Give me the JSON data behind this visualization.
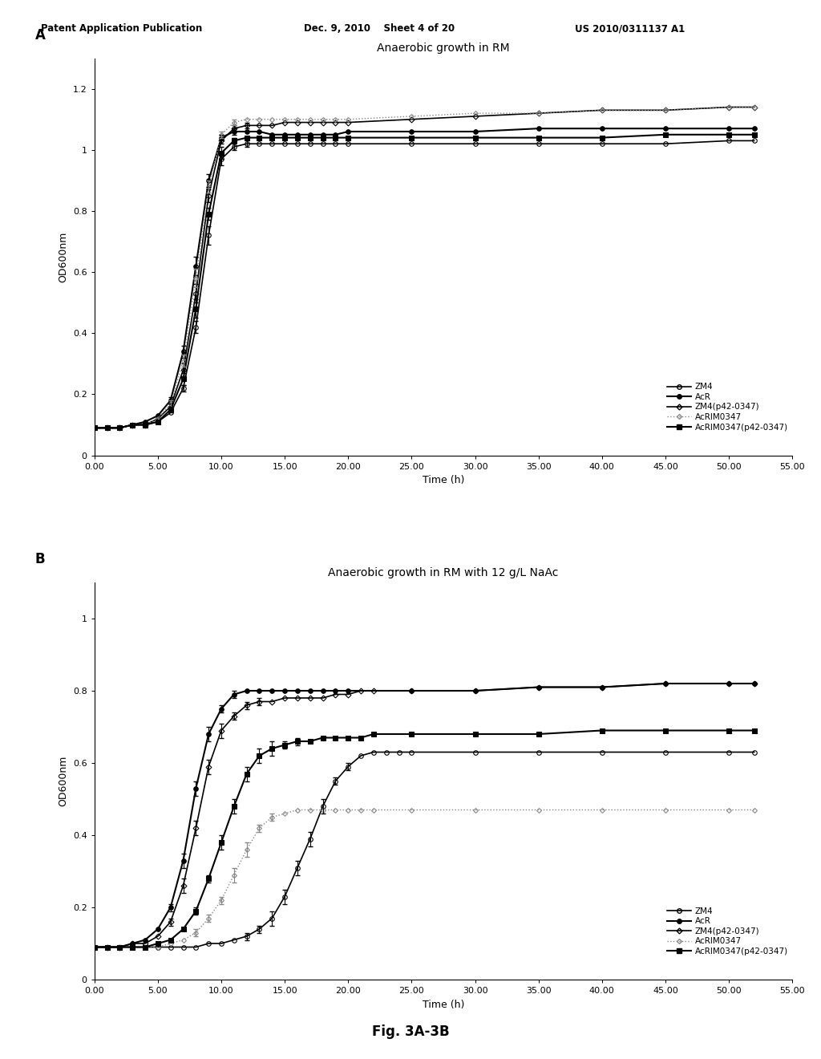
{
  "header_left": "Patent Application Publication",
  "header_center": "Dec. 9, 2010    Sheet 4 of 20",
  "header_right": "US 2010/0311137 A1",
  "fig_label": "Fig. 3A-3B",
  "panel_A": {
    "title": "Anaerobic growth in RM",
    "xlabel": "Time (h)",
    "ylabel": "OD600nm",
    "xlim": [
      0,
      55
    ],
    "ylim": [
      0,
      1.3
    ],
    "yticks": [
      0,
      0.2,
      0.4,
      0.6,
      0.8,
      1.0,
      1.2
    ],
    "xticks": [
      0.0,
      5.0,
      10.0,
      15.0,
      20.0,
      25.0,
      30.0,
      35.0,
      40.0,
      45.0,
      50.0,
      55.0
    ],
    "panel_letter": "A",
    "ZM4": {
      "x": [
        0.0,
        1.0,
        2.0,
        3.0,
        4.0,
        5.0,
        6.0,
        7.0,
        8.0,
        9.0,
        10.0,
        11.0,
        12.0,
        13.0,
        14.0,
        15.0,
        16.0,
        17.0,
        18.0,
        19.0,
        20.0,
        25.0,
        30.0,
        35.0,
        40.0,
        45.0,
        50.0,
        52.0
      ],
      "y": [
        0.09,
        0.09,
        0.09,
        0.1,
        0.1,
        0.11,
        0.14,
        0.22,
        0.42,
        0.72,
        0.97,
        1.01,
        1.02,
        1.02,
        1.02,
        1.02,
        1.02,
        1.02,
        1.02,
        1.02,
        1.02,
        1.02,
        1.02,
        1.02,
        1.02,
        1.02,
        1.03,
        1.03
      ],
      "yerr": [
        0.0,
        0.0,
        0.0,
        0.0,
        0.0,
        0.0,
        0.0,
        0.01,
        0.02,
        0.03,
        0.02,
        0.01,
        0.01,
        0.0,
        0.0,
        0.0,
        0.0,
        0.0,
        0.0,
        0.0,
        0.0,
        0.0,
        0.0,
        0.0,
        0.0,
        0.0,
        0.0,
        0.0
      ],
      "marker": "o",
      "fillstyle": "none",
      "color": "#000000",
      "linestyle": "-",
      "linewidth": 1.2,
      "markersize": 4
    },
    "AcR": {
      "x": [
        0.0,
        1.0,
        2.0,
        3.0,
        4.0,
        5.0,
        6.0,
        7.0,
        8.0,
        9.0,
        10.0,
        11.0,
        12.0,
        13.0,
        14.0,
        15.0,
        16.0,
        17.0,
        18.0,
        19.0,
        20.0,
        25.0,
        30.0,
        35.0,
        40.0,
        45.0,
        50.0,
        52.0
      ],
      "y": [
        0.09,
        0.09,
        0.09,
        0.1,
        0.11,
        0.13,
        0.18,
        0.34,
        0.62,
        0.9,
        1.04,
        1.06,
        1.06,
        1.06,
        1.05,
        1.05,
        1.05,
        1.05,
        1.05,
        1.05,
        1.06,
        1.06,
        1.06,
        1.07,
        1.07,
        1.07,
        1.07,
        1.07
      ],
      "yerr": [
        0.0,
        0.0,
        0.0,
        0.0,
        0.0,
        0.0,
        0.01,
        0.02,
        0.03,
        0.02,
        0.01,
        0.01,
        0.0,
        0.0,
        0.0,
        0.0,
        0.0,
        0.0,
        0.0,
        0.0,
        0.0,
        0.0,
        0.0,
        0.0,
        0.0,
        0.0,
        0.0,
        0.0
      ],
      "marker": "o",
      "fillstyle": "full",
      "color": "#000000",
      "linestyle": "-",
      "linewidth": 1.5,
      "markersize": 4
    },
    "ZM4p42": {
      "x": [
        0.0,
        1.0,
        2.0,
        3.0,
        4.0,
        5.0,
        6.0,
        7.0,
        8.0,
        9.0,
        10.0,
        11.0,
        12.0,
        13.0,
        14.0,
        15.0,
        16.0,
        17.0,
        18.0,
        19.0,
        20.0,
        25.0,
        30.0,
        35.0,
        40.0,
        45.0,
        50.0,
        52.0
      ],
      "y": [
        0.09,
        0.09,
        0.09,
        0.1,
        0.1,
        0.12,
        0.16,
        0.28,
        0.53,
        0.85,
        1.03,
        1.07,
        1.08,
        1.08,
        1.08,
        1.09,
        1.09,
        1.09,
        1.09,
        1.09,
        1.09,
        1.1,
        1.11,
        1.12,
        1.13,
        1.13,
        1.14,
        1.14
      ],
      "yerr": [
        0.0,
        0.0,
        0.0,
        0.0,
        0.0,
        0.0,
        0.01,
        0.02,
        0.03,
        0.02,
        0.01,
        0.01,
        0.01,
        0.0,
        0.0,
        0.0,
        0.0,
        0.0,
        0.0,
        0.0,
        0.0,
        0.0,
        0.0,
        0.0,
        0.0,
        0.0,
        0.0,
        0.0
      ],
      "marker": "D",
      "fillstyle": "none",
      "color": "#000000",
      "linestyle": "-",
      "linewidth": 1.2,
      "markersize": 3.5
    },
    "AcRIM0347": {
      "x": [
        0.0,
        1.0,
        2.0,
        3.0,
        4.0,
        5.0,
        6.0,
        7.0,
        8.0,
        9.0,
        10.0,
        11.0,
        12.0,
        13.0,
        14.0,
        15.0,
        16.0,
        17.0,
        18.0,
        19.0,
        20.0,
        25.0,
        30.0,
        35.0,
        40.0,
        45.0,
        50.0,
        52.0
      ],
      "y": [
        0.09,
        0.09,
        0.09,
        0.1,
        0.1,
        0.12,
        0.17,
        0.31,
        0.58,
        0.88,
        1.05,
        1.09,
        1.1,
        1.1,
        1.1,
        1.1,
        1.1,
        1.1,
        1.1,
        1.1,
        1.1,
        1.11,
        1.12,
        1.12,
        1.13,
        1.13,
        1.14,
        1.14
      ],
      "yerr": [
        0.0,
        0.0,
        0.0,
        0.0,
        0.0,
        0.0,
        0.01,
        0.02,
        0.03,
        0.02,
        0.01,
        0.01,
        0.0,
        0.0,
        0.0,
        0.0,
        0.0,
        0.0,
        0.0,
        0.0,
        0.0,
        0.0,
        0.0,
        0.0,
        0.0,
        0.0,
        0.0,
        0.0
      ],
      "marker": "D",
      "fillstyle": "none",
      "color": "#888888",
      "linestyle": ":",
      "linewidth": 1.0,
      "markersize": 3
    },
    "AcRIM0347p42": {
      "x": [
        0.0,
        1.0,
        2.0,
        3.0,
        4.0,
        5.0,
        6.0,
        7.0,
        8.0,
        9.0,
        10.0,
        11.0,
        12.0,
        13.0,
        14.0,
        15.0,
        16.0,
        17.0,
        18.0,
        19.0,
        20.0,
        25.0,
        30.0,
        35.0,
        40.0,
        45.0,
        50.0,
        52.0
      ],
      "y": [
        0.09,
        0.09,
        0.09,
        0.1,
        0.1,
        0.11,
        0.15,
        0.25,
        0.48,
        0.79,
        0.99,
        1.03,
        1.04,
        1.04,
        1.04,
        1.04,
        1.04,
        1.04,
        1.04,
        1.04,
        1.04,
        1.04,
        1.04,
        1.04,
        1.04,
        1.05,
        1.05,
        1.05
      ],
      "yerr": [
        0.0,
        0.0,
        0.0,
        0.0,
        0.0,
        0.0,
        0.01,
        0.02,
        0.03,
        0.02,
        0.02,
        0.01,
        0.0,
        0.0,
        0.0,
        0.0,
        0.0,
        0.0,
        0.0,
        0.0,
        0.0,
        0.0,
        0.0,
        0.0,
        0.0,
        0.0,
        0.0,
        0.0
      ],
      "marker": "s",
      "fillstyle": "full",
      "color": "#000000",
      "linestyle": "-",
      "linewidth": 1.5,
      "markersize": 4
    }
  },
  "panel_B": {
    "title": "Anaerobic growth in RM with 12 g/L NaAc",
    "xlabel": "Time (h)",
    "ylabel": "OD600nm",
    "xlim": [
      0,
      55
    ],
    "ylim": [
      0,
      1.1
    ],
    "yticks": [
      0,
      0.2,
      0.4,
      0.6,
      0.8,
      1.0
    ],
    "xticks": [
      0.0,
      5.0,
      10.0,
      15.0,
      20.0,
      25.0,
      30.0,
      35.0,
      40.0,
      45.0,
      50.0,
      55.0
    ],
    "panel_letter": "B",
    "ZM4": {
      "x": [
        0.0,
        1.0,
        2.0,
        3.0,
        4.0,
        5.0,
        6.0,
        7.0,
        8.0,
        9.0,
        10.0,
        11.0,
        12.0,
        13.0,
        14.0,
        15.0,
        16.0,
        17.0,
        18.0,
        19.0,
        20.0,
        21.0,
        22.0,
        23.0,
        24.0,
        25.0,
        30.0,
        35.0,
        40.0,
        45.0,
        50.0,
        52.0
      ],
      "y": [
        0.09,
        0.09,
        0.09,
        0.09,
        0.09,
        0.09,
        0.09,
        0.09,
        0.09,
        0.1,
        0.1,
        0.11,
        0.12,
        0.14,
        0.17,
        0.23,
        0.31,
        0.39,
        0.48,
        0.55,
        0.59,
        0.62,
        0.63,
        0.63,
        0.63,
        0.63,
        0.63,
        0.63,
        0.63,
        0.63,
        0.63,
        0.63
      ],
      "yerr": [
        0.0,
        0.0,
        0.0,
        0.0,
        0.0,
        0.0,
        0.0,
        0.0,
        0.0,
        0.0,
        0.0,
        0.0,
        0.01,
        0.01,
        0.02,
        0.02,
        0.02,
        0.02,
        0.02,
        0.01,
        0.01,
        0.0,
        0.0,
        0.0,
        0.0,
        0.0,
        0.0,
        0.0,
        0.0,
        0.0,
        0.0,
        0.0
      ],
      "marker": "o",
      "fillstyle": "none",
      "color": "#000000",
      "linestyle": "-",
      "linewidth": 1.2,
      "markersize": 4
    },
    "AcR": {
      "x": [
        0.0,
        1.0,
        2.0,
        3.0,
        4.0,
        5.0,
        6.0,
        7.0,
        8.0,
        9.0,
        10.0,
        11.0,
        12.0,
        13.0,
        14.0,
        15.0,
        16.0,
        17.0,
        18.0,
        19.0,
        20.0,
        25.0,
        30.0,
        35.0,
        40.0,
        45.0,
        50.0,
        52.0
      ],
      "y": [
        0.09,
        0.09,
        0.09,
        0.1,
        0.11,
        0.14,
        0.2,
        0.33,
        0.53,
        0.68,
        0.75,
        0.79,
        0.8,
        0.8,
        0.8,
        0.8,
        0.8,
        0.8,
        0.8,
        0.8,
        0.8,
        0.8,
        0.8,
        0.81,
        0.81,
        0.82,
        0.82,
        0.82
      ],
      "yerr": [
        0.0,
        0.0,
        0.0,
        0.0,
        0.0,
        0.0,
        0.01,
        0.02,
        0.02,
        0.02,
        0.01,
        0.01,
        0.0,
        0.0,
        0.0,
        0.0,
        0.0,
        0.0,
        0.0,
        0.0,
        0.0,
        0.0,
        0.0,
        0.0,
        0.0,
        0.0,
        0.0,
        0.0
      ],
      "marker": "o",
      "fillstyle": "full",
      "color": "#000000",
      "linestyle": "-",
      "linewidth": 1.5,
      "markersize": 4
    },
    "ZM4p42": {
      "x": [
        0.0,
        1.0,
        2.0,
        3.0,
        4.0,
        5.0,
        6.0,
        7.0,
        8.0,
        9.0,
        10.0,
        11.0,
        12.0,
        13.0,
        14.0,
        15.0,
        16.0,
        17.0,
        18.0,
        19.0,
        20.0,
        21.0,
        22.0,
        25.0,
        30.0,
        35.0,
        40.0,
        45.0,
        50.0,
        52.0
      ],
      "y": [
        0.09,
        0.09,
        0.09,
        0.1,
        0.1,
        0.12,
        0.16,
        0.26,
        0.42,
        0.59,
        0.69,
        0.73,
        0.76,
        0.77,
        0.77,
        0.78,
        0.78,
        0.78,
        0.78,
        0.79,
        0.79,
        0.8,
        0.8,
        0.8,
        0.8,
        0.81,
        0.81,
        0.82,
        0.82,
        0.82
      ],
      "yerr": [
        0.0,
        0.0,
        0.0,
        0.0,
        0.0,
        0.0,
        0.01,
        0.02,
        0.02,
        0.02,
        0.02,
        0.01,
        0.01,
        0.01,
        0.0,
        0.0,
        0.0,
        0.0,
        0.0,
        0.0,
        0.0,
        0.0,
        0.0,
        0.0,
        0.0,
        0.0,
        0.0,
        0.0,
        0.0,
        0.0
      ],
      "marker": "D",
      "fillstyle": "none",
      "color": "#000000",
      "linestyle": "-",
      "linewidth": 1.2,
      "markersize": 3.5
    },
    "AcRIM0347": {
      "x": [
        0.0,
        1.0,
        2.0,
        3.0,
        4.0,
        5.0,
        6.0,
        7.0,
        8.0,
        9.0,
        10.0,
        11.0,
        12.0,
        13.0,
        14.0,
        15.0,
        16.0,
        17.0,
        18.0,
        19.0,
        20.0,
        21.0,
        22.0,
        25.0,
        30.0,
        35.0,
        40.0,
        45.0,
        50.0,
        52.0
      ],
      "y": [
        0.09,
        0.09,
        0.09,
        0.09,
        0.09,
        0.09,
        0.1,
        0.11,
        0.13,
        0.17,
        0.22,
        0.29,
        0.36,
        0.42,
        0.45,
        0.46,
        0.47,
        0.47,
        0.47,
        0.47,
        0.47,
        0.47,
        0.47,
        0.47,
        0.47,
        0.47,
        0.47,
        0.47,
        0.47,
        0.47
      ],
      "yerr": [
        0.0,
        0.0,
        0.0,
        0.0,
        0.0,
        0.0,
        0.0,
        0.0,
        0.01,
        0.01,
        0.01,
        0.02,
        0.02,
        0.01,
        0.01,
        0.0,
        0.0,
        0.0,
        0.0,
        0.0,
        0.0,
        0.0,
        0.0,
        0.0,
        0.0,
        0.0,
        0.0,
        0.0,
        0.0,
        0.0
      ],
      "marker": "D",
      "fillstyle": "none",
      "color": "#888888",
      "linestyle": ":",
      "linewidth": 1.0,
      "markersize": 3
    },
    "AcRIM0347p42": {
      "x": [
        0.0,
        1.0,
        2.0,
        3.0,
        4.0,
        5.0,
        6.0,
        7.0,
        8.0,
        9.0,
        10.0,
        11.0,
        12.0,
        13.0,
        14.0,
        15.0,
        16.0,
        17.0,
        18.0,
        19.0,
        20.0,
        21.0,
        22.0,
        25.0,
        30.0,
        35.0,
        40.0,
        45.0,
        50.0,
        52.0
      ],
      "y": [
        0.09,
        0.09,
        0.09,
        0.09,
        0.09,
        0.1,
        0.11,
        0.14,
        0.19,
        0.28,
        0.38,
        0.48,
        0.57,
        0.62,
        0.64,
        0.65,
        0.66,
        0.66,
        0.67,
        0.67,
        0.67,
        0.67,
        0.68,
        0.68,
        0.68,
        0.68,
        0.69,
        0.69,
        0.69,
        0.69
      ],
      "yerr": [
        0.0,
        0.0,
        0.0,
        0.0,
        0.0,
        0.0,
        0.0,
        0.0,
        0.01,
        0.01,
        0.02,
        0.02,
        0.02,
        0.02,
        0.02,
        0.01,
        0.01,
        0.0,
        0.0,
        0.0,
        0.0,
        0.0,
        0.0,
        0.0,
        0.0,
        0.0,
        0.0,
        0.0,
        0.0,
        0.0
      ],
      "marker": "s",
      "fillstyle": "full",
      "color": "#000000",
      "linestyle": "-",
      "linewidth": 1.5,
      "markersize": 4
    }
  },
  "legend_labels": [
    "ZM4",
    "AcR",
    "ZM4(p42-0347)",
    "AcRIM0347",
    "AcRIM0347(p42-0347)"
  ]
}
